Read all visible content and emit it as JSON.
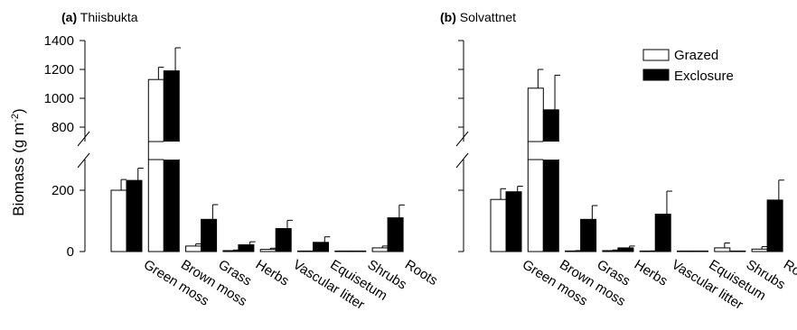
{
  "figure": {
    "ylabel_main": "Biomass (g m",
    "ylabel_sup": "-2",
    "ylabel_close": ")"
  },
  "chart_data": [
    {
      "type": "bar",
      "panel_letter": "(a)",
      "title": "Thiisbukta",
      "categories": [
        "Green moss",
        "Brown moss",
        "Grass",
        "Herbs",
        "Vascular litter",
        "Equisetum",
        "Shrubs",
        "Roots"
      ],
      "series": [
        {
          "name": "Grazed",
          "fill": "#ffffff",
          "values": [
            200,
            1130,
            18,
            3,
            7,
            0,
            0,
            12
          ],
          "errors": [
            35,
            85,
            7,
            2,
            4,
            0,
            0,
            6
          ]
        },
        {
          "name": "Exclosure",
          "fill": "#000000",
          "values": [
            232,
            1190,
            105,
            22,
            75,
            30,
            0,
            110
          ],
          "errors": [
            40,
            160,
            48,
            10,
            27,
            18,
            0,
            42
          ]
        }
      ],
      "y_broken_axis": true,
      "ylim_lower": [
        0,
        300
      ],
      "ylim_upper": [
        700,
        1400
      ],
      "yticks_lower": [
        0,
        200
      ],
      "yticks_upper": [
        800,
        1000,
        1200,
        1400
      ],
      "show_tick_labels": true
    },
    {
      "type": "bar",
      "panel_letter": "(b)",
      "title": "Solvattnet",
      "categories": [
        "Green moss",
        "Brown moss",
        "Grass",
        "Herbs",
        "Vascular litter",
        "Equisetum",
        "Shrubs",
        "Roots"
      ],
      "series": [
        {
          "name": "Grazed",
          "fill": "#ffffff",
          "values": [
            170,
            1070,
            2,
            3,
            1,
            0,
            12,
            8
          ],
          "errors": [
            35,
            130,
            1,
            2,
            1,
            0,
            16,
            8
          ]
        },
        {
          "name": "Exclosure",
          "fill": "#000000",
          "values": [
            195,
            920,
            105,
            12,
            122,
            0,
            0,
            168
          ],
          "errors": [
            18,
            240,
            45,
            6,
            75,
            0,
            0,
            65
          ]
        }
      ],
      "y_broken_axis": true,
      "ylim_lower": [
        0,
        300
      ],
      "ylim_upper": [
        700,
        1400
      ],
      "yticks_lower": [
        0,
        200
      ],
      "yticks_upper": [
        800,
        1000,
        1200,
        1400
      ],
      "show_tick_labels": false
    }
  ],
  "legend": {
    "placement": "top-right",
    "items": [
      "Grazed",
      "Exclosure"
    ]
  }
}
